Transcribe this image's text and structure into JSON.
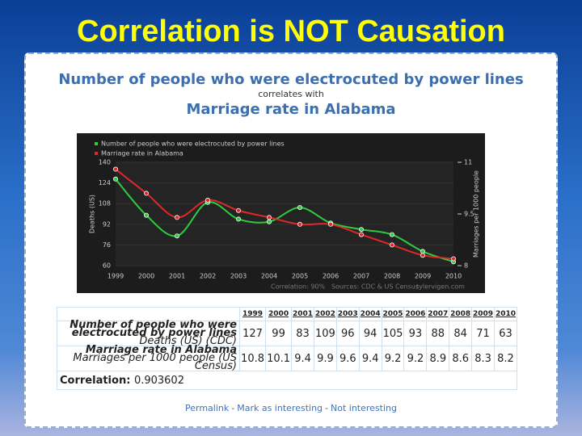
{
  "slide_title": "Correlation is NOT Causation",
  "chart_data": {
    "type": "line",
    "title": "Number of people who were electrocuted by power lines",
    "subtitle": "correlates with",
    "title2": "Marriage rate in Alabama",
    "x": [
      1999,
      2000,
      2001,
      2002,
      2003,
      2004,
      2005,
      2006,
      2007,
      2008,
      2009,
      2010
    ],
    "xlim": [
      1999,
      2010
    ],
    "series": [
      {
        "name": "Number of people who were electrocuted by power lines",
        "color": "#2ecc40",
        "values": [
          127,
          99,
          83,
          109,
          96,
          94,
          105,
          93,
          88,
          84,
          71,
          63
        ]
      },
      {
        "name": "Marriage rate in Alabama",
        "color": "#e02828",
        "axis": "y2",
        "values": [
          10.8,
          10.1,
          9.4,
          9.9,
          9.6,
          9.4,
          9.2,
          9.2,
          8.9,
          8.6,
          8.3,
          8.2
        ]
      }
    ],
    "ylabel": "Deaths (US)",
    "y2label": "Marriages per 1000 people",
    "ylim": [
      60,
      140
    ],
    "yticks": [
      60,
      76,
      92,
      108,
      124,
      140
    ],
    "y2lim": [
      8,
      11
    ],
    "y2ticks": [
      8,
      9.5,
      11
    ],
    "grid": true,
    "legend": "top-left",
    "notes": [
      "Correlation: 90%",
      "Sources: CDC & US Census",
      "tylervigen.com"
    ]
  },
  "table": {
    "row_notes": [
      "Deaths (US) (CDC)",
      "Marriages per 1000 people (US Census)"
    ],
    "correlation_label": "Correlation:",
    "correlation": 0.903602
  },
  "links": [
    "Permalink",
    "Mark as interesting",
    "Not interesting"
  ],
  "link_separator": "-"
}
